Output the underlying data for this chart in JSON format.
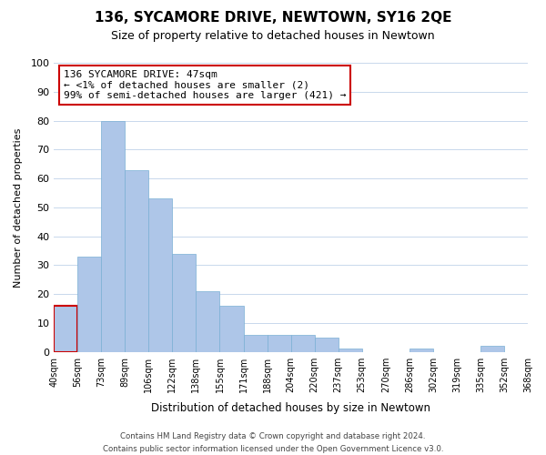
{
  "title": "136, SYCAMORE DRIVE, NEWTOWN, SY16 2QE",
  "subtitle": "Size of property relative to detached houses in Newtown",
  "xlabel": "Distribution of detached houses by size in Newtown",
  "ylabel": "Number of detached properties",
  "bar_color": "#aec6e8",
  "bar_edge_color": "#7aafd4",
  "highlight_bar_edge_color": "#cc0000",
  "bin_edges_labels": [
    "40sqm",
    "56sqm",
    "73sqm",
    "89sqm",
    "106sqm",
    "122sqm",
    "138sqm",
    "155sqm",
    "171sqm",
    "188sqm",
    "204sqm",
    "220sqm",
    "237sqm",
    "253sqm",
    "270sqm",
    "286sqm",
    "302sqm",
    "319sqm",
    "335sqm",
    "352sqm",
    "368sqm"
  ],
  "bar_heights": [
    16,
    33,
    80,
    63,
    53,
    34,
    21,
    16,
    6,
    6,
    6,
    5,
    1,
    0,
    0,
    1,
    0,
    0,
    2,
    0
  ],
  "highlight_bar_index": 0,
  "ylim": [
    0,
    100
  ],
  "yticks": [
    0,
    10,
    20,
    30,
    40,
    50,
    60,
    70,
    80,
    90,
    100
  ],
  "annotation_title": "136 SYCAMORE DRIVE: 47sqm",
  "annotation_line1": "← <1% of detached houses are smaller (2)",
  "annotation_line2": "99% of semi-detached houses are larger (421) →",
  "annotation_box_facecolor": "#ffffff",
  "annotation_box_edgecolor": "#cc0000",
  "footer1": "Contains HM Land Registry data © Crown copyright and database right 2024.",
  "footer2": "Contains public sector information licensed under the Open Government Licence v3.0."
}
